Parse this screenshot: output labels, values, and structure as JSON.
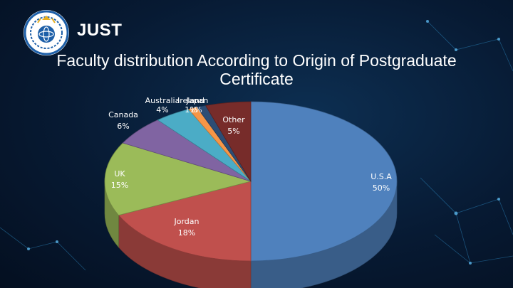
{
  "header": {
    "brand": "JUST",
    "title": "Faculty distribution According to Origin of Postgraduate Certificate"
  },
  "chart_data": {
    "type": "pie",
    "style": "3d",
    "slices": [
      {
        "label": "U.S.A",
        "value_text": "50%",
        "value": 50,
        "color": "#4f81bd"
      },
      {
        "label": "Jordan",
        "value_text": "18%",
        "value": 18,
        "color": "#c0504d"
      },
      {
        "label": "UK",
        "value_text": "15%",
        "value": 15,
        "color": "#9bbb59"
      },
      {
        "label": "Canada",
        "value_text": "6%",
        "value": 6,
        "color": "#8064a2"
      },
      {
        "label": "Australia",
        "value_text": "4%",
        "value": 4,
        "color": "#4bacc6"
      },
      {
        "label": "Ireland",
        "value_text": "1%",
        "value": 1,
        "color": "#f79646"
      },
      {
        "label": "Japan",
        "value_text": "1%",
        "value": 1,
        "color": "#2c4d75"
      },
      {
        "label": "Other",
        "value_text": "5%",
        "value": 5,
        "color": "#772c2a"
      }
    ]
  }
}
